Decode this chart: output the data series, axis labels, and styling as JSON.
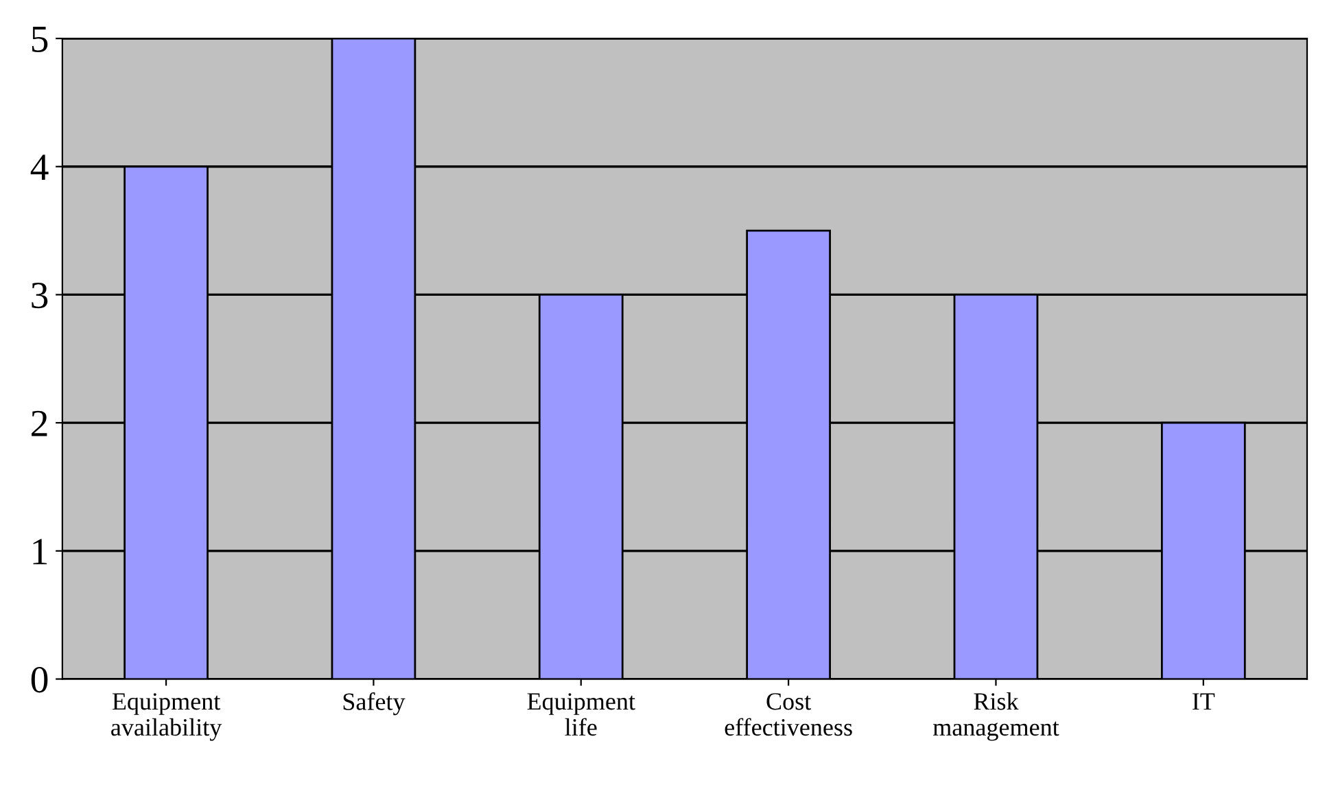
{
  "chart_data": {
    "type": "bar",
    "categories": [
      "Equipment\navailability",
      "Safety",
      "Equipment\nlife",
      "Cost\neffectiveness",
      "Risk\nmanagement",
      "IT"
    ],
    "values": [
      4,
      5,
      3,
      3.5,
      3,
      2
    ],
    "color": "#9999ff",
    "ylim": [
      0,
      5
    ],
    "yticks": [
      0,
      1,
      2,
      3,
      4,
      5
    ],
    "grid": "y"
  }
}
